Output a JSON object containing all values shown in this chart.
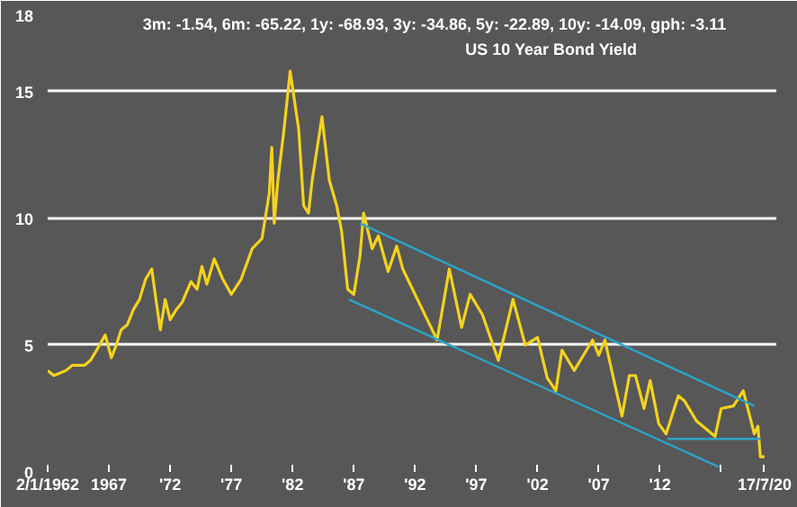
{
  "chart_data": {
    "type": "line",
    "title": "US 10 Year Bond Yield",
    "annotations": [
      "3m: -1.54,   6m: -65.22,   1y: -68.93,   3y: -34.86,   5y: -22.89,   10y: -14.09,   gph: -3.11"
    ],
    "series": [
      {
        "color": "#f5d21e",
        "x": [
          1962.0,
          1962.5,
          1963.0,
          1963.5,
          1964.0,
          1964.5,
          1965.0,
          1965.5,
          1966.0,
          1966.7,
          1967.2,
          1967.6,
          1968.0,
          1968.5,
          1969.0,
          1969.5,
          1970.0,
          1970.5,
          1970.9,
          1971.2,
          1971.6,
          1972.0,
          1972.5,
          1973.0,
          1973.7,
          1974.2,
          1974.6,
          1975.0,
          1975.6,
          1976.3,
          1977.0,
          1977.8,
          1978.7,
          1979.5,
          1980.1,
          1980.3,
          1980.5,
          1980.8,
          1981.3,
          1981.8,
          1982.5,
          1982.9,
          1983.3,
          1983.6,
          1984.4,
          1985.0,
          1985.6,
          1986.0,
          1986.5,
          1987.0,
          1987.5,
          1987.8,
          1988.5,
          1989.0,
          1989.8,
          1990.5,
          1991.0,
          1992.0,
          1993.0,
          1993.8,
          1994.8,
          1995.8,
          1996.5,
          1997.5,
          1998.8,
          2000.0,
          2001.0,
          2002.0,
          2002.8,
          2003.5,
          2004.0,
          2005.0,
          2006.5,
          2007.0,
          2007.5,
          2008.9,
          2009.5,
          2010.0,
          2010.7,
          2011.2,
          2011.9,
          2012.5,
          2013.5,
          2014.0,
          2015.0,
          2016.5,
          2017.0,
          2018.0,
          2018.8,
          2019.7,
          2020.0,
          2020.2,
          2020.54
        ],
        "values": [
          4.0,
          3.8,
          3.9,
          4.0,
          4.2,
          4.2,
          4.2,
          4.4,
          4.8,
          5.4,
          4.5,
          5.0,
          5.6,
          5.8,
          6.4,
          6.8,
          7.6,
          8.0,
          6.6,
          5.6,
          6.8,
          6.0,
          6.4,
          6.7,
          7.5,
          7.2,
          8.1,
          7.4,
          8.4,
          7.6,
          7.0,
          7.6,
          8.8,
          9.2,
          11.0,
          12.8,
          9.8,
          11.5,
          13.5,
          15.8,
          13.5,
          10.5,
          10.2,
          11.5,
          14.0,
          11.5,
          10.5,
          9.5,
          7.2,
          7.0,
          8.5,
          10.2,
          8.8,
          9.3,
          7.9,
          8.9,
          8.0,
          7.0,
          6.0,
          5.2,
          8.0,
          5.7,
          7.0,
          6.2,
          4.4,
          6.8,
          5.0,
          5.3,
          3.7,
          3.2,
          4.8,
          4.0,
          5.2,
          4.6,
          5.2,
          2.2,
          3.8,
          3.8,
          2.5,
          3.6,
          1.9,
          1.5,
          3.0,
          2.8,
          2.0,
          1.4,
          2.5,
          2.6,
          3.2,
          1.5,
          1.8,
          0.6,
          0.6
        ]
      },
      {
        "type": "line",
        "color": "#2aa4c8",
        "x": [
          1987.5,
          2019.7
        ],
        "values": [
          9.8,
          2.6
        ]
      },
      {
        "type": "line",
        "color": "#2aa4c8",
        "x": [
          1986.6,
          2016.8
        ],
        "values": [
          6.8,
          0.2
        ]
      },
      {
        "type": "line",
        "color": "#2aa4c8",
        "x": [
          2012.6,
          2020.2
        ],
        "values": [
          1.3,
          1.3
        ]
      }
    ],
    "xlim": [
      1962,
      2021.5
    ],
    "ylim": [
      0,
      18
    ],
    "xticks": [
      {
        "value": 1962,
        "label": "2/1/1962"
      },
      1967,
      {
        "value": 1972,
        "label": "'72"
      },
      {
        "value": 1977,
        "label": "'77"
      },
      {
        "value": 1982,
        "label": "'82"
      },
      {
        "value": 1987,
        "label": "'87"
      },
      {
        "value": 1992,
        "label": "'92"
      },
      {
        "value": 1997,
        "label": "'97"
      },
      {
        "value": 2002,
        "label": "'02"
      },
      {
        "value": 2007,
        "label": "'07"
      },
      {
        "value": 2012,
        "label": "'12"
      },
      {
        "value": 2017,
        "label": null
      },
      {
        "value": 2020.54,
        "label": "17/7/20"
      }
    ],
    "yticks": [
      0,
      5,
      10,
      15,
      18
    ],
    "grid": "y",
    "marker": "none",
    "line_style": "solid"
  }
}
